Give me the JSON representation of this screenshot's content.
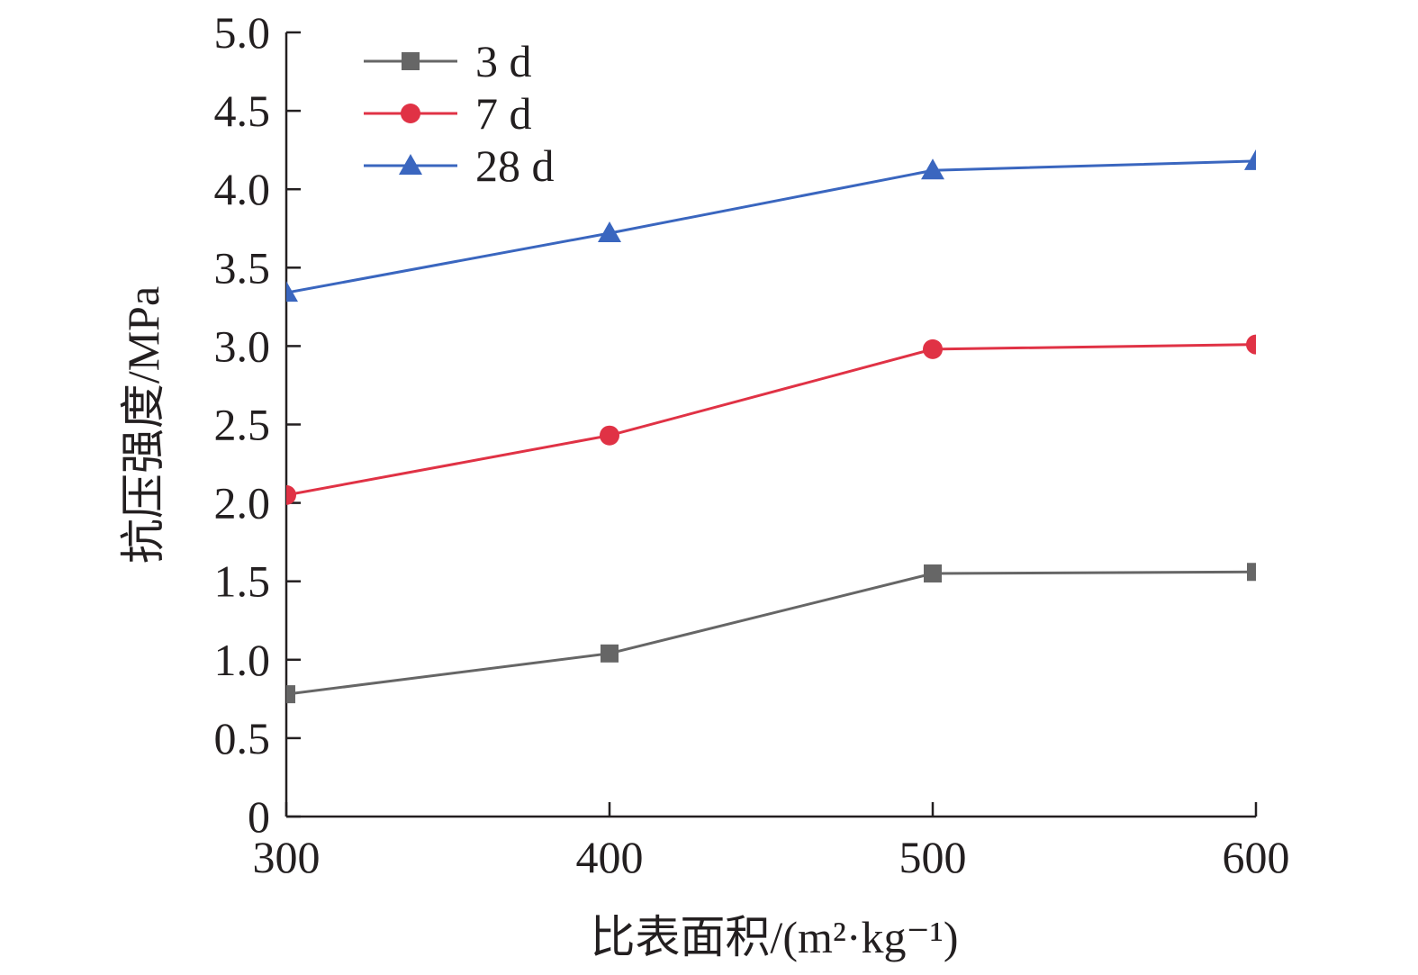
{
  "chart_data": {
    "type": "line",
    "xlabel": "比表面积/(m²·kg⁻¹)",
    "ylabel": "抗压强度/MPa",
    "xlim": [
      300,
      600
    ],
    "ylim": [
      0,
      5.0
    ],
    "x_ticks": [
      300,
      400,
      500,
      600
    ],
    "y_ticks": [
      0,
      0.5,
      1.0,
      1.5,
      2.0,
      2.5,
      3.0,
      3.5,
      4.0,
      4.5,
      5.0
    ],
    "x_tick_labels": [
      "300",
      "400",
      "500",
      "600"
    ],
    "y_tick_labels": [
      "0",
      "0.5",
      "1.0",
      "1.5",
      "2.0",
      "2.5",
      "3.0",
      "3.5",
      "4.0",
      "4.5",
      "5.0"
    ],
    "grid": false,
    "legend_position": "top-left",
    "x": [
      300,
      400,
      500,
      600
    ],
    "series": [
      {
        "name": "3 d",
        "values": [
          0.78,
          1.04,
          1.55,
          1.56
        ],
        "color": "#666666",
        "marker": "square"
      },
      {
        "name": "7 d",
        "values": [
          2.05,
          2.43,
          2.98,
          3.01
        ],
        "color": "#e03245",
        "marker": "circle"
      },
      {
        "name": "28 d",
        "values": [
          3.34,
          3.72,
          4.12,
          4.18
        ],
        "color": "#3a66bf",
        "marker": "triangle"
      }
    ]
  }
}
